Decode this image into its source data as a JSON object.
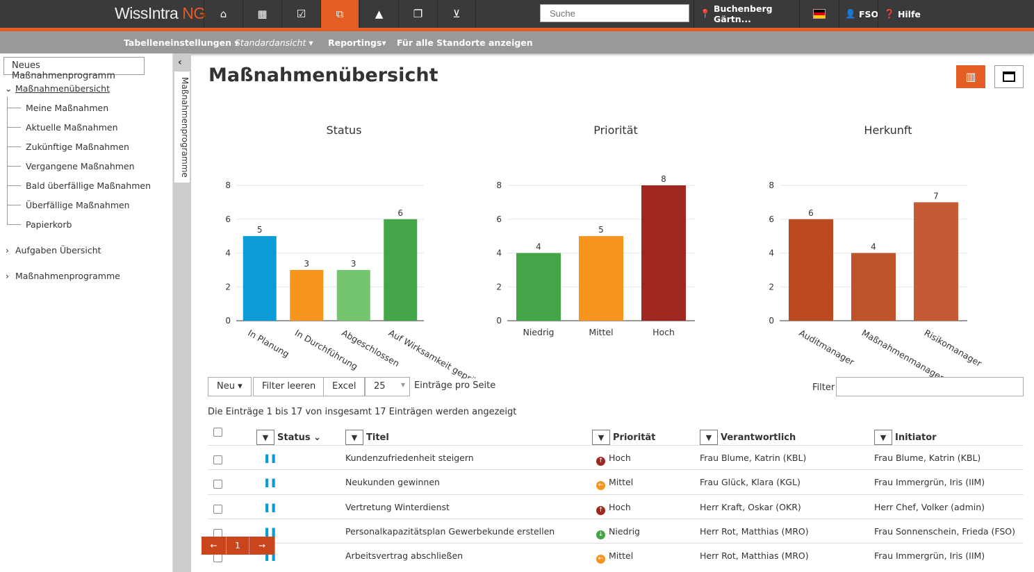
{
  "header": {
    "logo_main": "WissIntra ",
    "logo_accent": "NG",
    "search_placeholder": "Suche",
    "location": "Buchenberg Gärtn...",
    "user": "FSO",
    "help": "Hilfe"
  },
  "subnav": [
    "Tabelleneinstellungen ▾",
    "Standardansicht ▾",
    "Reportings▾",
    "Für alle Standorte anzeigen"
  ],
  "sidebar": {
    "new_button": "Neues Maßnahmenprogramm",
    "section": "Maßnahmenübersicht",
    "items": [
      "Meine Maßnahmen",
      "Aktuelle Maßnahmen",
      "Zukünftige Maßnahmen",
      "Vergangene Maßnahmen",
      "Bald überfällige Maßnahmen",
      "Überfällige Maßnahmen",
      "Papierkorb"
    ],
    "groups": [
      "Aufgaben Übersicht",
      "Maßnahmenprogramme"
    ],
    "vertical_tab": "Maßnahmenprogramme"
  },
  "page_title": "Maßnahmenübersicht",
  "chart_data": [
    {
      "type": "bar",
      "title": "Status",
      "categories": [
        "In Planung",
        "In Durchführung",
        "Abgeschlossen",
        "Auf Wirksamkeit geprüft"
      ],
      "values": [
        5,
        3,
        3,
        6
      ],
      "colors": [
        "#0a9bd8",
        "#f7941d",
        "#75c46f",
        "#43a548"
      ],
      "ylim": [
        0,
        8
      ],
      "yticks": [
        0,
        2,
        4,
        6,
        8
      ],
      "rotated": true
    },
    {
      "type": "bar",
      "title": "Priorität",
      "categories": [
        "Niedrig",
        "Mittel",
        "Hoch"
      ],
      "values": [
        4,
        5,
        8
      ],
      "colors": [
        "#43a548",
        "#f7941d",
        "#a0271f"
      ],
      "ylim": [
        0,
        8
      ],
      "yticks": [
        0,
        2,
        4,
        6,
        8
      ],
      "rotated": false
    },
    {
      "type": "bar",
      "title": "Herkunft",
      "categories": [
        "Auditmanager",
        "Maßnahmenmanager",
        "Risikomanager"
      ],
      "values": [
        6,
        4,
        7
      ],
      "colors": [
        "#bc4a20",
        "#bd522b",
        "#c45b35"
      ],
      "ylim": [
        0,
        8
      ],
      "yticks": [
        0,
        2,
        4,
        6,
        8
      ],
      "rotated": true
    }
  ],
  "toolbar": {
    "new": "Neu ▾",
    "clear": "Filter leeren",
    "excel": "Excel",
    "page_size": "25",
    "per_page": "Einträge pro Seite",
    "filter": "Filter"
  },
  "info": "Die Einträge 1 bis 17 von insgesamt 17 Einträgen werden angezeigt",
  "table": {
    "headers": [
      "Status",
      "Titel",
      "Priorität",
      "Verantwortlich",
      "Initiator"
    ],
    "rows": [
      {
        "title": "Kundenzufriedenheit steigern",
        "priority": "Hoch",
        "resp": "Frau Blume, Katrin (KBL)",
        "init": "Frau Blume, Katrin (KBL)"
      },
      {
        "title": "Neukunden gewinnen",
        "priority": "Mittel",
        "resp": "Frau Glück, Klara (KGL)",
        "init": "Frau Immergrün, Iris (IIM)"
      },
      {
        "title": "Vertretung Winterdienst",
        "priority": "Hoch",
        "resp": "Herr Kraft, Oskar (OKR)",
        "init": "Herr Chef, Volker (admin)"
      },
      {
        "title": "Personalkapazitätsplan Gewerbekunde erstellen",
        "priority": "Niedrig",
        "resp": "Herr Rot, Matthias (MRO)",
        "init": "Frau Sonnenschein, Frieda (FSO)"
      },
      {
        "title": "Arbeitsvertrag abschließen",
        "priority": "Mittel",
        "resp": "Herr Rot, Matthias (MRO)",
        "init": "Frau Immergrün, Iris (IIM)"
      }
    ]
  },
  "pagination": {
    "prev": "←",
    "page": "1",
    "next": "→"
  },
  "priority_colors": {
    "Hoch": "#a0271f",
    "Mittel": "#f7941d",
    "Niedrig": "#43a548"
  }
}
